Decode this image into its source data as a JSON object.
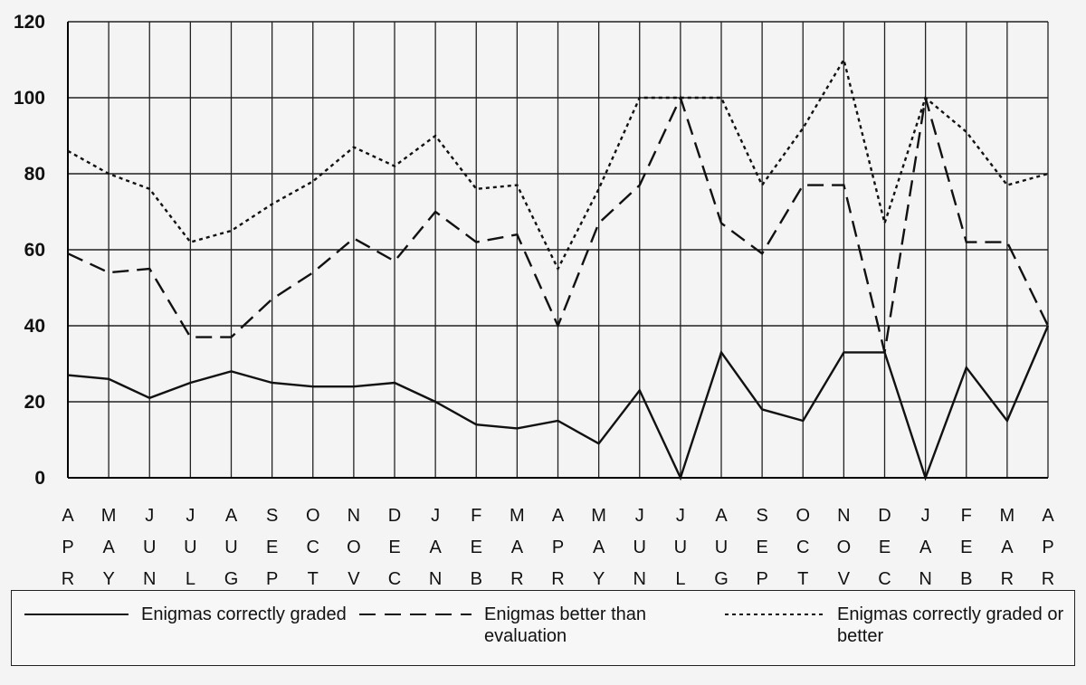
{
  "chart_data": {
    "type": "line",
    "title": "",
    "xlabel": "",
    "ylabel": "",
    "ylim": [
      0,
      120
    ],
    "yticks": [
      0,
      20,
      40,
      60,
      80,
      100,
      120
    ],
    "grid": true,
    "legend_position": "bottom",
    "categories": [
      [
        "A",
        "P",
        "R"
      ],
      [
        "M",
        "A",
        "Y"
      ],
      [
        "J",
        "U",
        "N"
      ],
      [
        "J",
        "U",
        "L"
      ],
      [
        "A",
        "U",
        "G"
      ],
      [
        "S",
        "E",
        "P"
      ],
      [
        "O",
        "C",
        "T"
      ],
      [
        "N",
        "O",
        "V"
      ],
      [
        "D",
        "E",
        "C"
      ],
      [
        "J",
        "A",
        "N"
      ],
      [
        "F",
        "E",
        "B"
      ],
      [
        "M",
        "A",
        "R"
      ],
      [
        "A",
        "P",
        "R"
      ],
      [
        "M",
        "A",
        "Y"
      ],
      [
        "J",
        "U",
        "N"
      ],
      [
        "J",
        "U",
        "L"
      ],
      [
        "A",
        "U",
        "G"
      ],
      [
        "S",
        "E",
        "P"
      ],
      [
        "O",
        "C",
        "T"
      ],
      [
        "N",
        "O",
        "V"
      ],
      [
        "D",
        "E",
        "C"
      ],
      [
        "J",
        "A",
        "N"
      ],
      [
        "F",
        "E",
        "B"
      ],
      [
        "M",
        "A",
        "R"
      ],
      [
        "A",
        "P",
        "R"
      ]
    ],
    "series": [
      {
        "name": "Enigmas correctly graded",
        "style": "solid",
        "values": [
          27,
          26,
          21,
          25,
          28,
          25,
          24,
          24,
          25,
          20,
          14,
          13,
          15,
          9,
          23,
          0,
          33,
          18,
          15,
          33,
          33,
          0,
          29,
          15,
          40
        ]
      },
      {
        "name": "Enigmas better than evaluation",
        "style": "dashed",
        "values": [
          59,
          54,
          55,
          37,
          37,
          47,
          54,
          63,
          57,
          70,
          62,
          64,
          40,
          67,
          77,
          100,
          67,
          59,
          77,
          77,
          33,
          100,
          62,
          62,
          40
        ]
      },
      {
        "name": "Enigmas correctly graded or better",
        "style": "dotted",
        "values": [
          86,
          80,
          76,
          62,
          65,
          72,
          78,
          87,
          82,
          90,
          76,
          77,
          55,
          76,
          100,
          100,
          100,
          77,
          92,
          110,
          67,
          100,
          91,
          77,
          80
        ]
      }
    ],
    "colors": {
      "line": "#111111",
      "grid": "#222222",
      "background": "#f4f4f4"
    }
  }
}
